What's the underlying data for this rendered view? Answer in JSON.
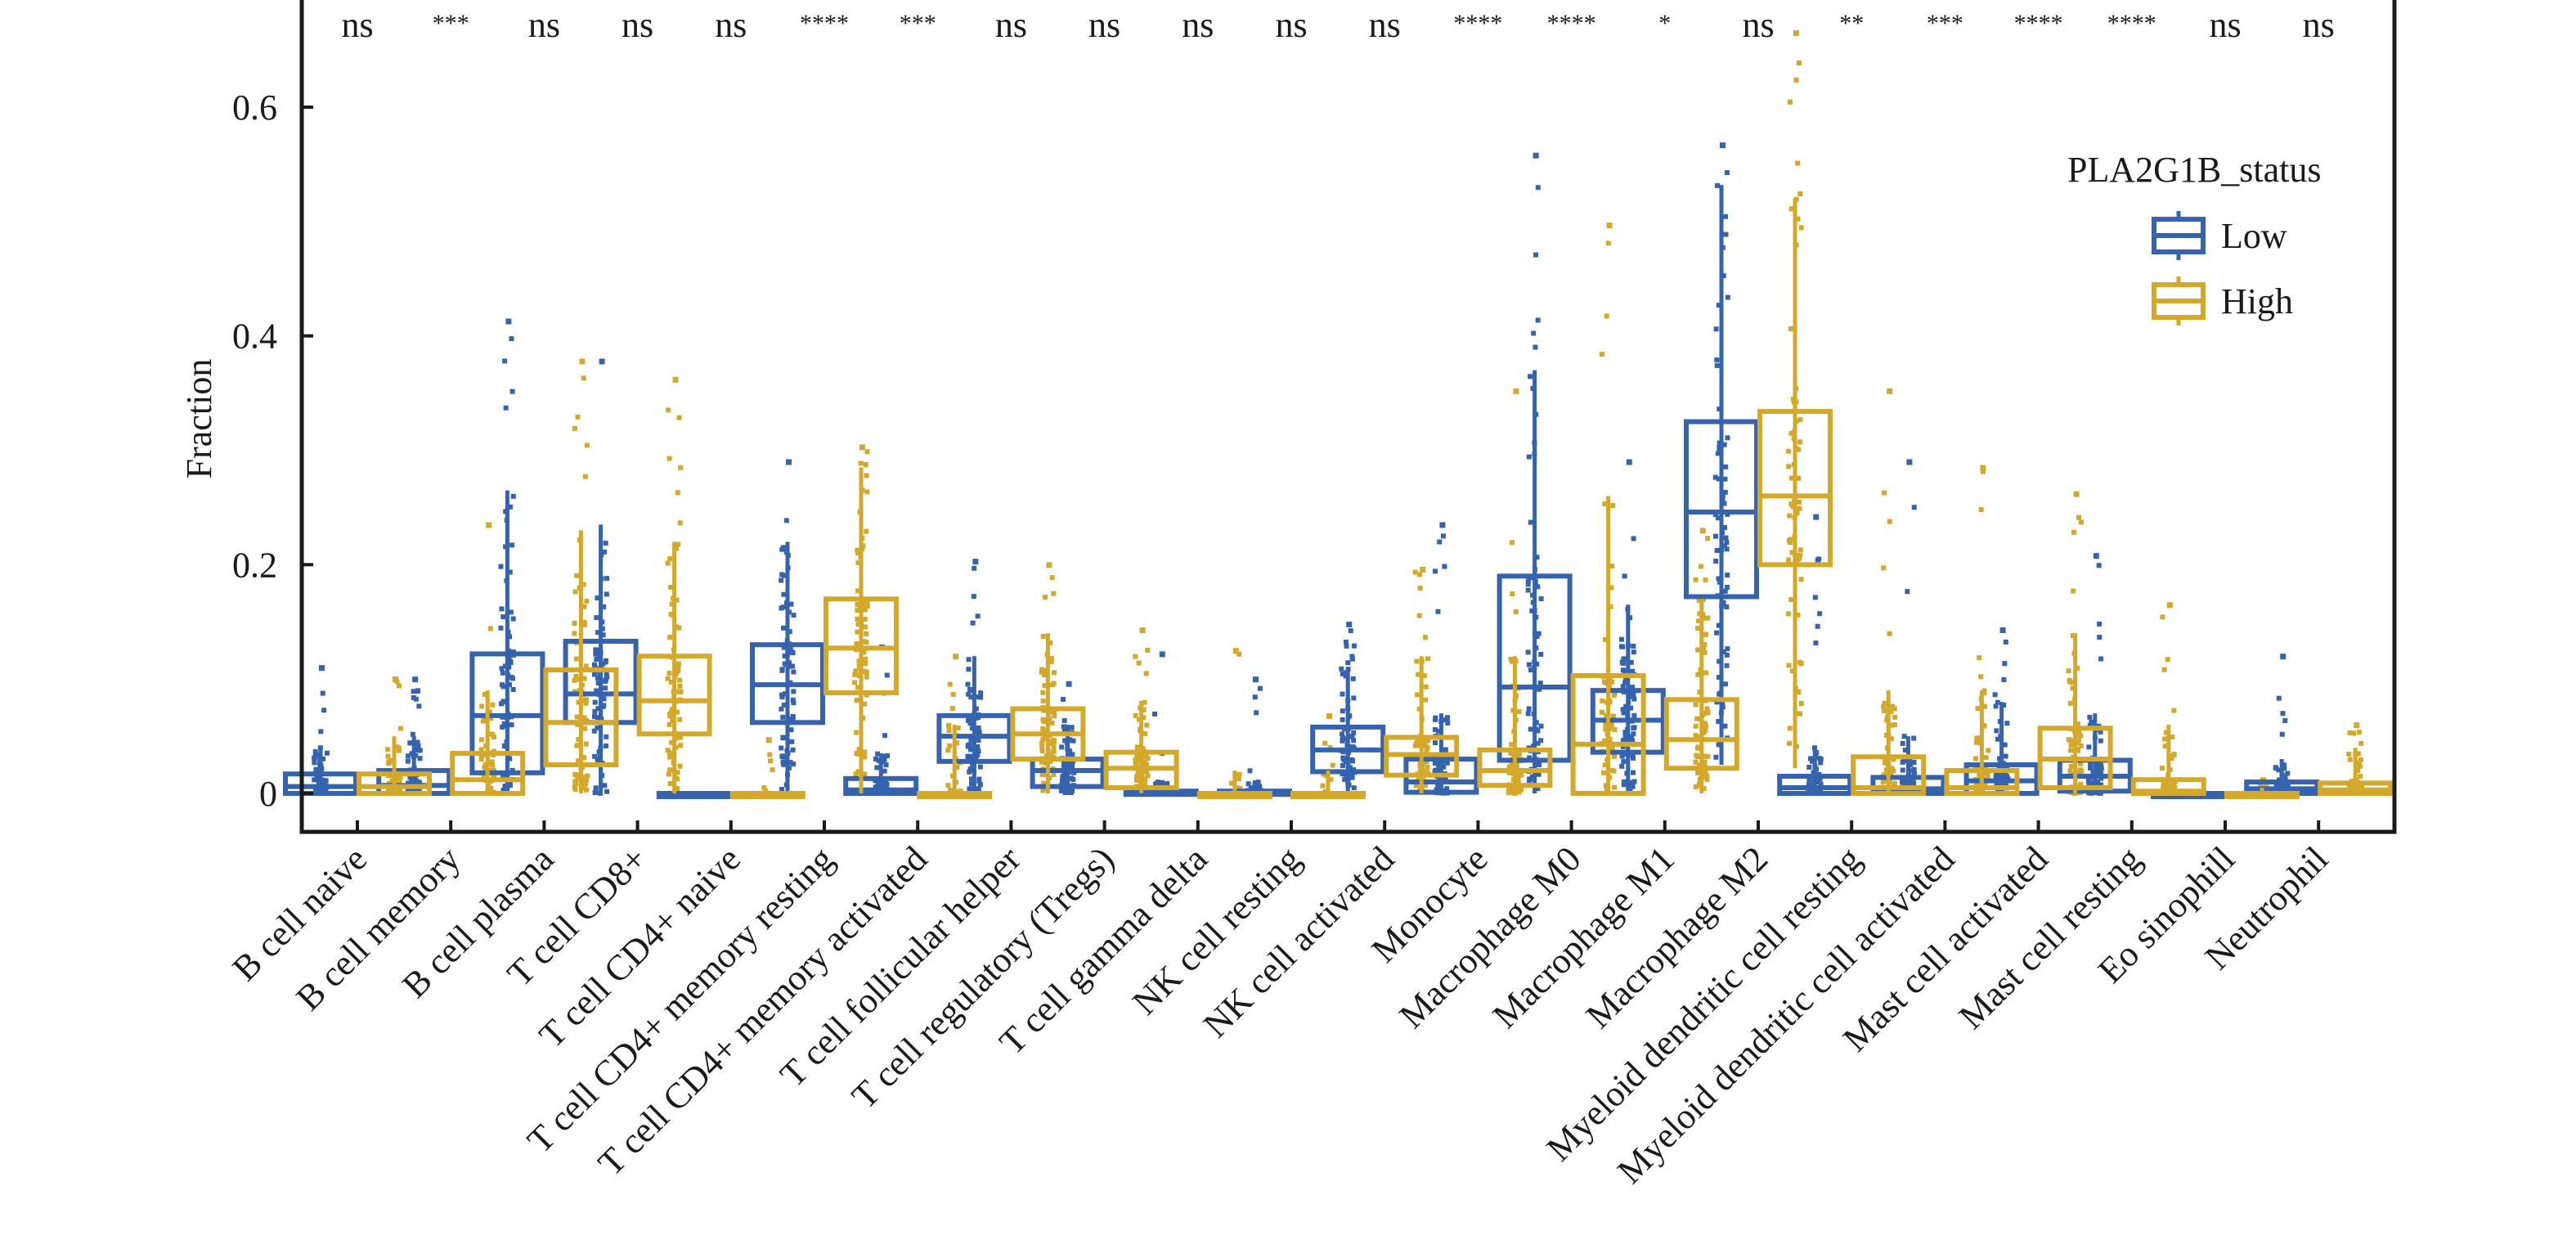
{
  "chart_data": {
    "type": "box",
    "title": "",
    "xlabel": "",
    "ylabel": "Fraction",
    "ylim": [
      -0.035,
      0.695
    ],
    "yticks": [
      0,
      0.2,
      0.4,
      0.6
    ],
    "ytick_labels": [
      "0",
      "0.2",
      "0.4",
      "0.6"
    ],
    "grid": false,
    "legend": {
      "title": "PLA2G1B_status",
      "position": "top-right",
      "entries": [
        {
          "name": "Low",
          "color": "#3563ae"
        },
        {
          "name": "High",
          "color": "#d4a82a"
        }
      ]
    },
    "categories": [
      "B cell naive",
      "B cell memory",
      "B cell plasma",
      "T cell CD8+",
      "T cell CD4+ naive",
      "T cell CD4+ memory resting",
      "T cell CD4+ memory activated",
      "T cell follicular helper",
      "T cell regulatory (Tregs)",
      "T cell gamma delta",
      "NK cell resting",
      "NK cell activated",
      "Monocyte",
      "Macrophage M0",
      "Macrophage M1",
      "Macrophage M2",
      "Myeloid dendritic cell resting",
      "Myeloid dendritic cell activated",
      "Mast cell activated",
      "Mast cell resting",
      "Eo sinophill",
      "Neutrophil"
    ],
    "significance": [
      "ns",
      "***",
      "ns",
      "ns",
      "ns",
      "****",
      "***",
      "ns",
      "ns",
      "ns",
      "ns",
      "ns",
      "****",
      "****",
      "*",
      "ns",
      "**",
      "***",
      "****",
      "****",
      "ns",
      "ns"
    ],
    "series": [
      {
        "name": "Low",
        "color": "#3563ae",
        "boxes": [
          {
            "q1": 0.0,
            "median": 0.006,
            "q3": 0.017,
            "whisker_low": 0.0,
            "whisker_high": 0.04,
            "max": 0.11
          },
          {
            "q1": 0.0,
            "median": 0.007,
            "q3": 0.02,
            "whisker_low": 0.0,
            "whisker_high": 0.05,
            "max": 0.1
          },
          {
            "q1": 0.018,
            "median": 0.068,
            "q3": 0.122,
            "whisker_low": 0.0,
            "whisker_high": 0.265,
            "max": 0.413
          },
          {
            "q1": 0.062,
            "median": 0.087,
            "q3": 0.133,
            "whisker_low": 0.0,
            "whisker_high": 0.235,
            "max": 0.378
          },
          {
            "q1": 0.0,
            "median": 0.0,
            "q3": 0.0,
            "whisker_low": 0.0,
            "whisker_high": 0.0,
            "max": 0.0
          },
          {
            "q1": 0.062,
            "median": 0.095,
            "q3": 0.13,
            "whisker_low": 0.0,
            "whisker_high": 0.22,
            "max": 0.29
          },
          {
            "q1": 0.0,
            "median": 0.003,
            "q3": 0.013,
            "whisker_low": 0.0,
            "whisker_high": 0.035,
            "max": 0.128
          },
          {
            "q1": 0.028,
            "median": 0.05,
            "q3": 0.068,
            "whisker_low": 0.0,
            "whisker_high": 0.12,
            "max": 0.203
          },
          {
            "q1": 0.006,
            "median": 0.02,
            "q3": 0.03,
            "whisker_low": 0.0,
            "whisker_high": 0.06,
            "max": 0.096
          },
          {
            "q1": 0.0,
            "median": 0.0,
            "q3": 0.002,
            "whisker_low": 0.0,
            "whisker_high": 0.01,
            "max": 0.122
          },
          {
            "q1": 0.0,
            "median": 0.0,
            "q3": 0.002,
            "whisker_low": 0.0,
            "whisker_high": 0.01,
            "max": 0.1
          },
          {
            "q1": 0.019,
            "median": 0.038,
            "q3": 0.058,
            "whisker_low": 0.0,
            "whisker_high": 0.11,
            "max": 0.148
          },
          {
            "q1": 0.001,
            "median": 0.01,
            "q3": 0.03,
            "whisker_low": 0.0,
            "whisker_high": 0.07,
            "max": 0.235
          },
          {
            "q1": 0.029,
            "median": 0.093,
            "q3": 0.19,
            "whisker_low": 0.0,
            "whisker_high": 0.37,
            "max": 0.558
          },
          {
            "q1": 0.036,
            "median": 0.064,
            "q3": 0.09,
            "whisker_low": 0.0,
            "whisker_high": 0.165,
            "max": 0.29
          },
          {
            "q1": 0.172,
            "median": 0.246,
            "q3": 0.325,
            "whisker_low": 0.025,
            "whisker_high": 0.532,
            "max": 0.567
          },
          {
            "q1": 0.0,
            "median": 0.005,
            "q3": 0.015,
            "whisker_low": 0.0,
            "whisker_high": 0.04,
            "max": 0.242
          },
          {
            "q1": 0.0,
            "median": 0.004,
            "q3": 0.014,
            "whisker_low": 0.0,
            "whisker_high": 0.05,
            "max": 0.29
          },
          {
            "q1": 0.0,
            "median": 0.011,
            "q3": 0.025,
            "whisker_low": 0.0,
            "whisker_high": 0.08,
            "max": 0.143
          },
          {
            "q1": 0.002,
            "median": 0.015,
            "q3": 0.029,
            "whisker_low": 0.0,
            "whisker_high": 0.07,
            "max": 0.208
          },
          {
            "q1": 0.0,
            "median": 0.0,
            "q3": 0.0,
            "whisker_low": 0.0,
            "whisker_high": 0.0,
            "max": 0.0
          },
          {
            "q1": 0.0,
            "median": 0.004,
            "q3": 0.01,
            "whisker_low": 0.0,
            "whisker_high": 0.03,
            "max": 0.12
          }
        ]
      },
      {
        "name": "High",
        "color": "#d4a82a",
        "boxes": [
          {
            "q1": 0.0,
            "median": 0.006,
            "q3": 0.017,
            "whisker_low": 0.0,
            "whisker_high": 0.05,
            "max": 0.1
          },
          {
            "q1": 0.0,
            "median": 0.012,
            "q3": 0.035,
            "whisker_low": 0.0,
            "whisker_high": 0.09,
            "max": 0.235
          },
          {
            "q1": 0.025,
            "median": 0.062,
            "q3": 0.108,
            "whisker_low": 0.0,
            "whisker_high": 0.23,
            "max": 0.378
          },
          {
            "q1": 0.052,
            "median": 0.081,
            "q3": 0.12,
            "whisker_low": 0.0,
            "whisker_high": 0.22,
            "max": 0.362
          },
          {
            "q1": 0.0,
            "median": 0.0,
            "q3": 0.0,
            "whisker_low": 0.0,
            "whisker_high": 0.0,
            "max": 0.047
          },
          {
            "q1": 0.088,
            "median": 0.127,
            "q3": 0.17,
            "whisker_low": 0.0,
            "whisker_high": 0.285,
            "max": 0.303
          },
          {
            "q1": 0.0,
            "median": 0.0,
            "q3": 0.0,
            "whisker_low": 0.0,
            "whisker_high": 0.06,
            "max": 0.12
          },
          {
            "q1": 0.03,
            "median": 0.052,
            "q3": 0.074,
            "whisker_low": 0.0,
            "whisker_high": 0.14,
            "max": 0.2
          },
          {
            "q1": 0.005,
            "median": 0.022,
            "q3": 0.036,
            "whisker_low": 0.0,
            "whisker_high": 0.08,
            "max": 0.143
          },
          {
            "q1": 0.0,
            "median": 0.0,
            "q3": 0.0,
            "whisker_low": 0.0,
            "whisker_high": 0.02,
            "max": 0.125
          },
          {
            "q1": 0.0,
            "median": 0.0,
            "q3": 0.0,
            "whisker_low": 0.0,
            "whisker_high": 0.02,
            "max": 0.068
          },
          {
            "q1": 0.016,
            "median": 0.034,
            "q3": 0.049,
            "whisker_low": 0.0,
            "whisker_high": 0.12,
            "max": 0.196
          },
          {
            "q1": 0.007,
            "median": 0.02,
            "q3": 0.038,
            "whisker_low": 0.0,
            "whisker_high": 0.12,
            "max": 0.352
          },
          {
            "q1": 0.0,
            "median": 0.043,
            "q3": 0.103,
            "whisker_low": 0.0,
            "whisker_high": 0.26,
            "max": 0.497
          },
          {
            "q1": 0.022,
            "median": 0.047,
            "q3": 0.082,
            "whisker_low": 0.0,
            "whisker_high": 0.17,
            "max": 0.23
          },
          {
            "q1": 0.2,
            "median": 0.26,
            "q3": 0.334,
            "whisker_low": 0.022,
            "whisker_high": 0.52,
            "max": 0.665
          },
          {
            "q1": 0.0,
            "median": 0.005,
            "q3": 0.032,
            "whisker_low": 0.0,
            "whisker_high": 0.09,
            "max": 0.352
          },
          {
            "q1": 0.0,
            "median": 0.005,
            "q3": 0.02,
            "whisker_low": 0.0,
            "whisker_high": 0.09,
            "max": 0.285
          },
          {
            "q1": 0.005,
            "median": 0.03,
            "q3": 0.057,
            "whisker_low": 0.0,
            "whisker_high": 0.14,
            "max": 0.262
          },
          {
            "q1": 0.0,
            "median": 0.002,
            "q3": 0.012,
            "whisker_low": 0.0,
            "whisker_high": 0.06,
            "max": 0.165
          },
          {
            "q1": 0.0,
            "median": 0.0,
            "q3": 0.0,
            "whisker_low": 0.0,
            "whisker_high": 0.005,
            "max": 0.012
          },
          {
            "q1": 0.0,
            "median": 0.003,
            "q3": 0.009,
            "whisker_low": 0.0,
            "whisker_high": 0.04,
            "max": 0.06
          }
        ]
      }
    ]
  }
}
